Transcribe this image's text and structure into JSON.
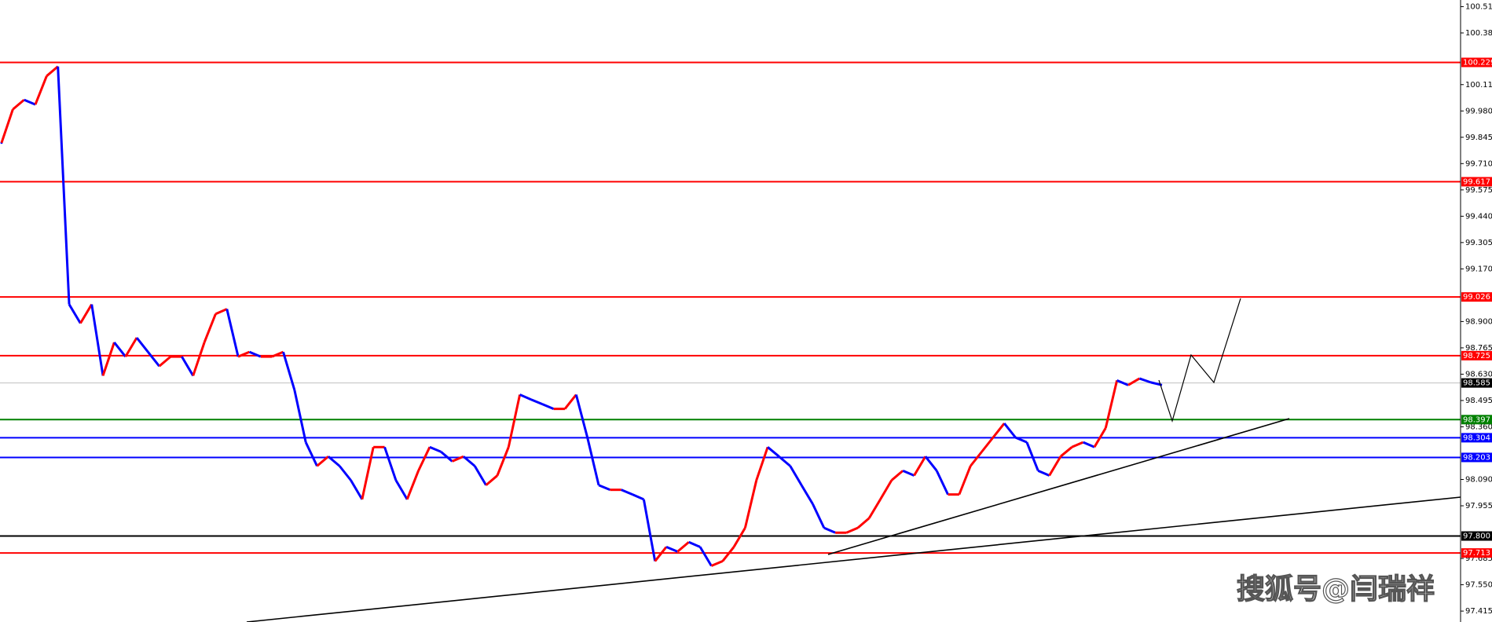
{
  "chart_data": {
    "type": "line",
    "ylim": [
      97.359,
      100.549
    ],
    "yticks": [
      {
        "value": 100.515,
        "label": "100.515"
      },
      {
        "value": 100.38,
        "label": "100.380"
      },
      {
        "value": 100.115,
        "label": "100.115"
      },
      {
        "value": 99.98,
        "label": "99.980"
      },
      {
        "value": 99.845,
        "label": "99.845"
      },
      {
        "value": 99.71,
        "label": "99.710"
      },
      {
        "value": 99.575,
        "label": "99.575"
      },
      {
        "value": 99.44,
        "label": "99.440"
      },
      {
        "value": 99.305,
        "label": "99.305"
      },
      {
        "value": 99.17,
        "label": "99.170"
      },
      {
        "value": 98.9,
        "label": "98.900"
      },
      {
        "value": 98.765,
        "label": "98.765"
      },
      {
        "value": 98.63,
        "label": "98.630"
      },
      {
        "value": 98.495,
        "label": "98.495"
      },
      {
        "value": 98.36,
        "label": "98.360"
      },
      {
        "value": 98.09,
        "label": "98.090"
      },
      {
        "value": 97.955,
        "label": "97.955"
      },
      {
        "value": 97.685,
        "label": "97.685"
      },
      {
        "value": 97.55,
        "label": "97.550"
      },
      {
        "value": 97.415,
        "label": "97.415"
      }
    ],
    "levels": [
      {
        "value": 100.229,
        "label": "100.229",
        "color": "#ff0000"
      },
      {
        "value": 99.617,
        "label": "99.617",
        "color": "#ff0000"
      },
      {
        "value": 99.026,
        "label": "99.026",
        "color": "#ff0000"
      },
      {
        "value": 98.725,
        "label": "98.725",
        "color": "#ff0000"
      },
      {
        "value": 98.585,
        "label": "98.585",
        "color": "#000000"
      },
      {
        "value": 98.397,
        "label": "98.397",
        "color": "#008000"
      },
      {
        "value": 98.304,
        "label": "98.304",
        "color": "#0000ff"
      },
      {
        "value": 98.203,
        "label": "98.203",
        "color": "#0000ff"
      },
      {
        "value": 97.8,
        "label": "97.800",
        "color": "#000000"
      },
      {
        "value": 97.713,
        "label": "97.713",
        "color": "#ff0000"
      }
    ],
    "series": [
      {
        "up_color": "#ff0000",
        "down_color": "#0000ff",
        "values": [
          99.817,
          99.988,
          100.037,
          100.013,
          100.159,
          100.208,
          98.988,
          98.891,
          98.988,
          98.622,
          98.793,
          98.72,
          98.817,
          98.744,
          98.671,
          98.72,
          98.72,
          98.622,
          98.793,
          98.939,
          98.964,
          98.72,
          98.744,
          98.72,
          98.72,
          98.744,
          98.549,
          98.281,
          98.159,
          98.208,
          98.159,
          98.086,
          97.988,
          98.256,
          98.256,
          98.086,
          97.988,
          98.135,
          98.256,
          98.232,
          98.183,
          98.208,
          98.159,
          98.061,
          98.11,
          98.256,
          98.525,
          98.5,
          98.476,
          98.452,
          98.452,
          98.525,
          98.305,
          98.061,
          98.037,
          98.037,
          98.013,
          97.988,
          97.671,
          97.744,
          97.72,
          97.769,
          97.744,
          97.647,
          97.671,
          97.744,
          97.842,
          98.086,
          98.256,
          98.208,
          98.159,
          98.061,
          97.964,
          97.842,
          97.817,
          97.817,
          97.842,
          97.891,
          97.988,
          98.086,
          98.135,
          98.11,
          98.208,
          98.135,
          98.013,
          98.013,
          98.159,
          98.232,
          98.305,
          98.378,
          98.305,
          98.281,
          98.135,
          98.11,
          98.208,
          98.256,
          98.281,
          98.256,
          98.354,
          98.598,
          98.574,
          98.608,
          98.588,
          98.574
        ]
      }
    ],
    "watermark": "搜狐号@闫瑞祥"
  }
}
